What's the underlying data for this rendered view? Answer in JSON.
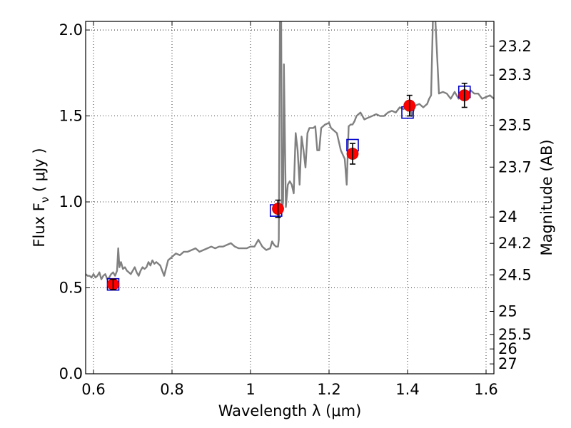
{
  "chart_data": {
    "type": "line",
    "xlabel": "Wavelength  λ (μm)",
    "ylabel": "Flux  F",
    "ylabel_sub": "ν",
    "ylabel_unit": " ( μJy )",
    "y2label": "Magnitude (AB)",
    "xlim": [
      0.58,
      1.62
    ],
    "ylim": [
      0.0,
      2.05
    ],
    "grid": true,
    "x_ticks": [
      0.6,
      0.8,
      1.0,
      1.2,
      1.4,
      1.6
    ],
    "x_tick_labels": [
      "0.6",
      "0.8",
      "1",
      "1.2",
      "1.4",
      "1.6"
    ],
    "y_ticks": [
      0.0,
      0.5,
      1.0,
      1.5,
      2.0
    ],
    "y_tick_labels": [
      "0.0",
      "0.5",
      "1.0",
      "1.5",
      "2.0"
    ],
    "y2_ticks": [
      23.2,
      23.3,
      23.5,
      23.7,
      24,
      24.2,
      24.5,
      25,
      25.5,
      26,
      27
    ],
    "y2_tick_labels": [
      "23.2",
      "23.3",
      "23.5",
      "23.7",
      "24",
      "24.2",
      "24.5",
      "25",
      "25.5",
      "26",
      "27"
    ],
    "colors": {
      "model": "#808080",
      "observed": "#ff0000",
      "synthetic": "#0000cc",
      "errorbar": "#000000"
    },
    "series": [
      {
        "kind": "model-spectrum",
        "x": [
          0.58,
          0.585,
          0.59,
          0.595,
          0.6,
          0.605,
          0.61,
          0.615,
          0.62,
          0.625,
          0.63,
          0.635,
          0.64,
          0.645,
          0.65,
          0.655,
          0.66,
          0.663,
          0.666,
          0.67,
          0.675,
          0.68,
          0.685,
          0.69,
          0.695,
          0.7,
          0.705,
          0.71,
          0.715,
          0.72,
          0.725,
          0.73,
          0.735,
          0.74,
          0.745,
          0.75,
          0.755,
          0.76,
          0.765,
          0.77,
          0.78,
          0.79,
          0.8,
          0.81,
          0.82,
          0.83,
          0.84,
          0.85,
          0.86,
          0.87,
          0.88,
          0.89,
          0.9,
          0.91,
          0.92,
          0.93,
          0.94,
          0.95,
          0.96,
          0.97,
          0.98,
          0.99,
          1.0,
          1.01,
          1.02,
          1.03,
          1.04,
          1.05,
          1.055,
          1.06,
          1.065,
          1.07,
          1.072,
          1.075,
          1.078,
          1.08,
          1.083,
          1.085,
          1.09,
          1.095,
          1.1,
          1.105,
          1.11,
          1.115,
          1.12,
          1.125,
          1.13,
          1.135,
          1.14,
          1.145,
          1.15,
          1.155,
          1.16,
          1.165,
          1.17,
          1.175,
          1.18,
          1.19,
          1.2,
          1.205,
          1.21,
          1.22,
          1.23,
          1.24,
          1.245,
          1.25,
          1.255,
          1.26,
          1.265,
          1.27,
          1.28,
          1.29,
          1.3,
          1.31,
          1.32,
          1.33,
          1.34,
          1.35,
          1.36,
          1.37,
          1.38,
          1.39,
          1.395,
          1.4,
          1.405,
          1.41,
          1.42,
          1.43,
          1.44,
          1.45,
          1.455,
          1.46,
          1.465,
          1.47,
          1.48,
          1.49,
          1.5,
          1.51,
          1.52,
          1.53,
          1.54,
          1.55,
          1.56,
          1.57,
          1.58,
          1.59,
          1.6,
          1.61,
          1.62
        ],
        "y": [
          0.58,
          0.57,
          0.57,
          0.56,
          0.58,
          0.56,
          0.57,
          0.59,
          0.55,
          0.57,
          0.58,
          0.55,
          0.56,
          0.58,
          0.59,
          0.57,
          0.6,
          0.73,
          0.62,
          0.65,
          0.61,
          0.62,
          0.6,
          0.59,
          0.58,
          0.6,
          0.62,
          0.59,
          0.57,
          0.6,
          0.62,
          0.61,
          0.62,
          0.65,
          0.63,
          0.66,
          0.64,
          0.65,
          0.64,
          0.63,
          0.57,
          0.66,
          0.68,
          0.7,
          0.69,
          0.71,
          0.71,
          0.72,
          0.73,
          0.71,
          0.72,
          0.73,
          0.74,
          0.73,
          0.74,
          0.74,
          0.75,
          0.76,
          0.74,
          0.73,
          0.73,
          0.73,
          0.74,
          0.74,
          0.78,
          0.74,
          0.72,
          0.73,
          0.77,
          0.75,
          0.74,
          0.74,
          0.78,
          2.1,
          2.1,
          0.95,
          1.0,
          1.8,
          0.97,
          1.1,
          1.12,
          1.1,
          1.05,
          1.4,
          1.3,
          1.1,
          1.38,
          1.3,
          1.2,
          1.4,
          1.43,
          1.43,
          1.43,
          1.44,
          1.3,
          1.3,
          1.43,
          1.45,
          1.46,
          1.43,
          1.42,
          1.4,
          1.3,
          1.25,
          1.1,
          1.44,
          1.45,
          1.45,
          1.47,
          1.5,
          1.52,
          1.48,
          1.49,
          1.5,
          1.51,
          1.5,
          1.5,
          1.52,
          1.53,
          1.52,
          1.55,
          1.54,
          1.55,
          1.53,
          1.58,
          1.5,
          1.56,
          1.57,
          1.55,
          1.57,
          1.6,
          1.62,
          2.1,
          2.1,
          1.63,
          1.64,
          1.63,
          1.6,
          1.64,
          1.6,
          1.61,
          1.62,
          1.65,
          1.63,
          1.63,
          1.6,
          1.61,
          1.62,
          1.6
        ]
      },
      {
        "kind": "synthetic-photometry",
        "x": [
          0.65,
          1.065,
          1.26,
          1.4,
          1.545
        ],
        "y": [
          0.52,
          0.95,
          1.33,
          1.52,
          1.64
        ]
      },
      {
        "kind": "observed-photometry",
        "x": [
          0.65,
          1.07,
          1.26,
          1.405,
          1.545
        ],
        "y": [
          0.52,
          0.96,
          1.28,
          1.56,
          1.62
        ],
        "yerr": [
          0.03,
          0.05,
          0.06,
          0.06,
          0.07
        ]
      }
    ]
  }
}
